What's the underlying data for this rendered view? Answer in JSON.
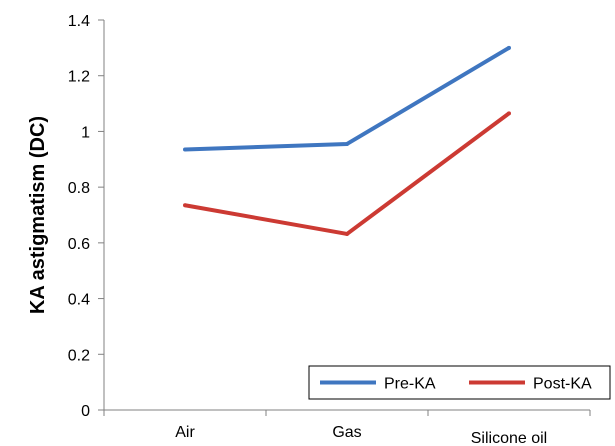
{
  "chart_data": {
    "type": "line",
    "categories": [
      "Air",
      "Gas",
      "Silicone oil"
    ],
    "series": [
      {
        "name": "Pre-KA",
        "values": [
          0.935,
          0.955,
          1.3
        ],
        "color": "#3F76C0"
      },
      {
        "name": "Post-KA",
        "values": [
          0.735,
          0.632,
          1.065
        ],
        "color": "#CC3A33"
      }
    ],
    "xlabel": "",
    "ylabel": "KA astigmatism (DC)",
    "ylim": [
      0,
      1.4
    ],
    "yticks": [
      "0",
      "0.2",
      "0.4",
      "0.6",
      "0.8",
      "1",
      "1.2",
      "1.4"
    ],
    "grid": false,
    "legend_position": "bottom-right"
  }
}
